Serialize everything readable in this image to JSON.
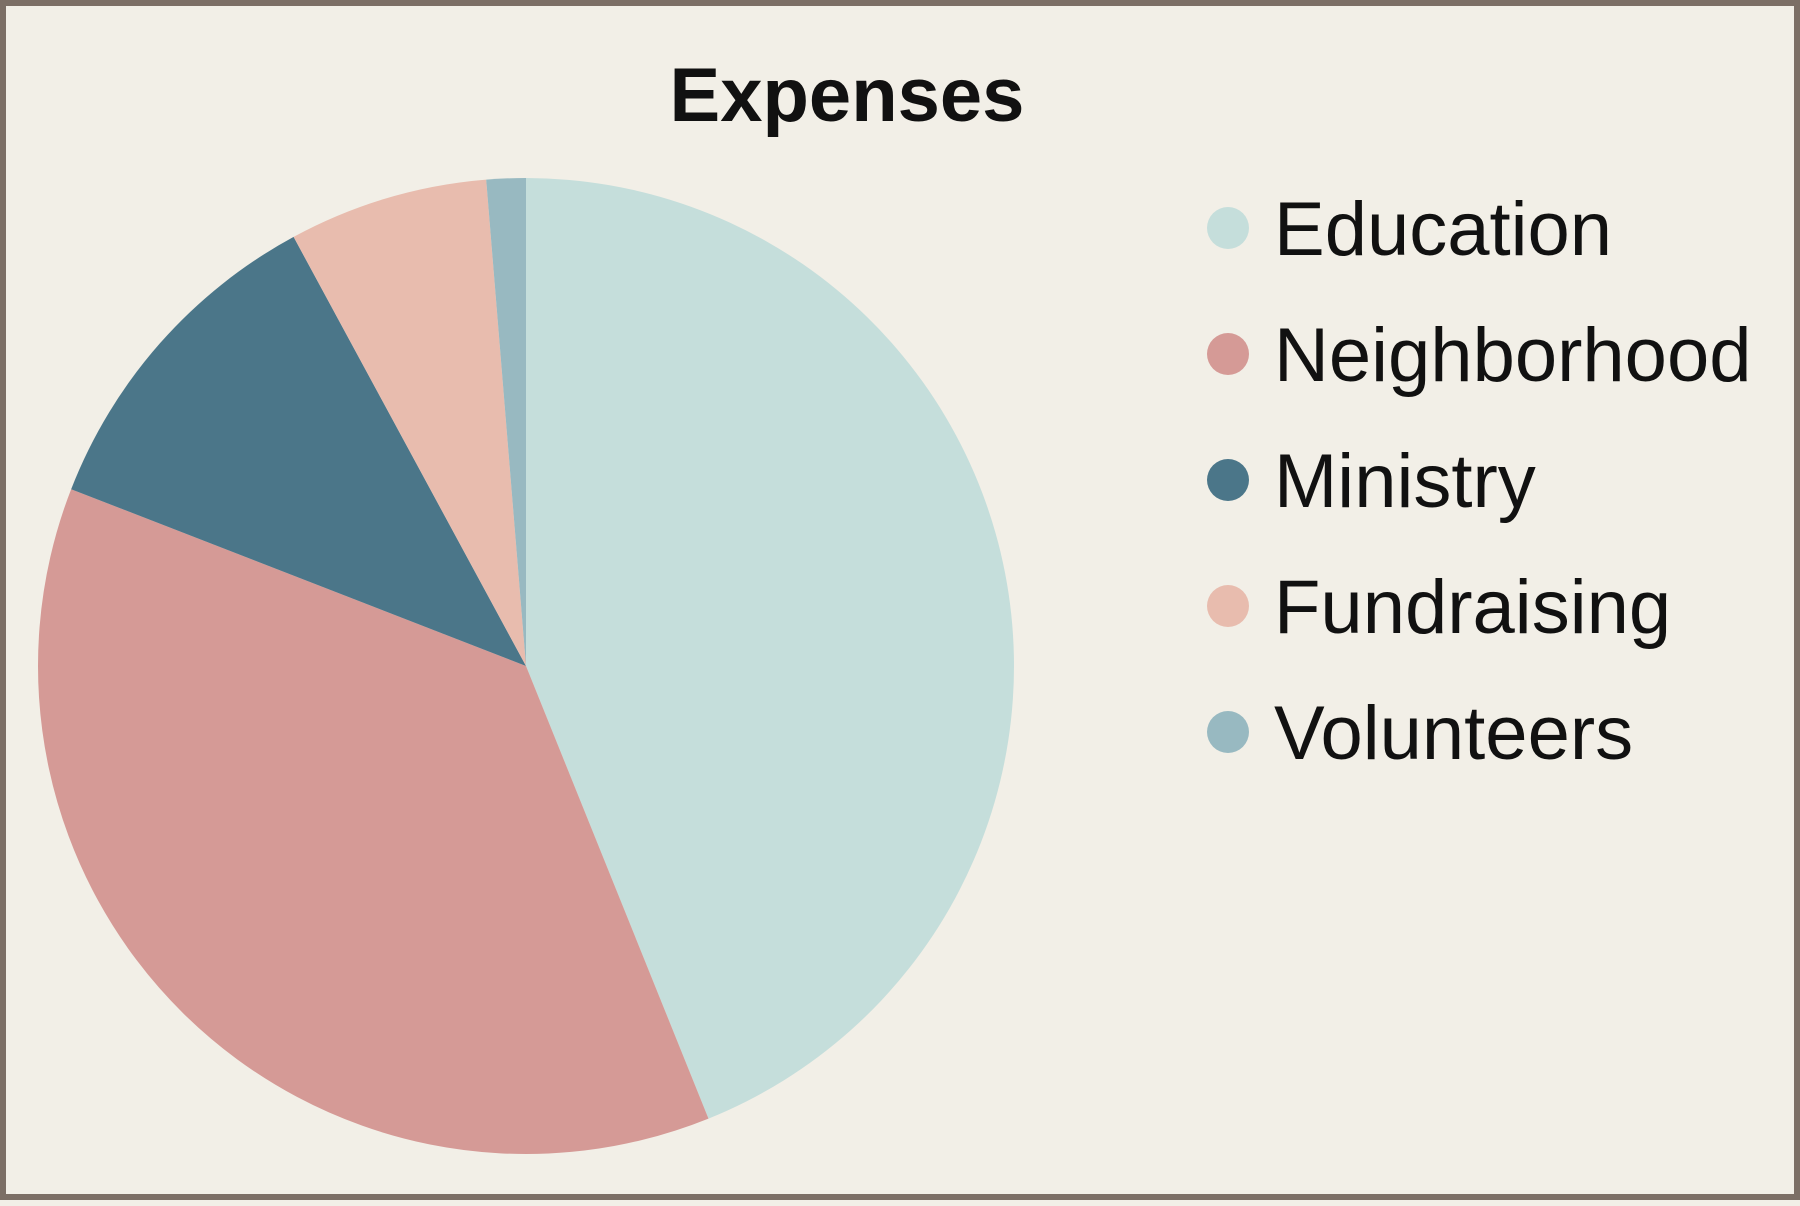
{
  "chart_data": {
    "type": "pie",
    "title": "Expenses",
    "legend_position": "right",
    "start_angle_deg": 0,
    "direction": "clockwise",
    "slices": [
      {
        "label": "Education",
        "value": 43.9,
        "color": "#c5dedb"
      },
      {
        "label": "Neighborhood",
        "value": 37.0,
        "color": "#d59a96"
      },
      {
        "label": "Ministry",
        "value": 11.2,
        "color": "#4b7689"
      },
      {
        "label": "Fundraising",
        "value": 6.6,
        "color": "#e8bcae"
      },
      {
        "label": "Volunteers",
        "value": 1.3,
        "color": "#98b9c1"
      }
    ]
  }
}
